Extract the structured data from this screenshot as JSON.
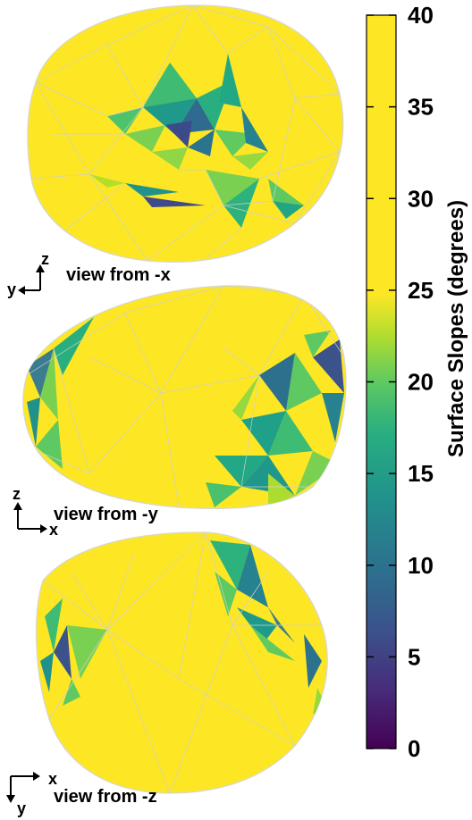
{
  "chart_data": {
    "type": "heatmap",
    "title": "",
    "colorbar": {
      "label": "Surface Slopes (degrees)",
      "min": 0,
      "max": 40,
      "ticks": [
        0,
        5,
        10,
        15,
        20,
        25,
        30,
        35,
        40
      ],
      "tick_labels": [
        "0",
        "5",
        "10",
        "15",
        "20",
        "25",
        "30",
        "35",
        "40"
      ],
      "colormap": "viridis (clipped at 40)",
      "colors": [
        "#440154",
        "#3b528b",
        "#21918c",
        "#5ec962",
        "#fde725"
      ]
    },
    "views": [
      {
        "label": "view from -x",
        "axis_h": "y",
        "axis_v": "z",
        "h_dir": "left",
        "v_dir": "up"
      },
      {
        "label": "view from -y",
        "axis_h": "x",
        "axis_v": "z",
        "h_dir": "right",
        "v_dir": "up"
      },
      {
        "label": "view from -z",
        "axis_h": "x",
        "axis_v": "y",
        "h_dir": "right",
        "v_dir": "down"
      }
    ],
    "mesh_edge_color": "#cfcfcf",
    "background_color": "#fde725"
  }
}
